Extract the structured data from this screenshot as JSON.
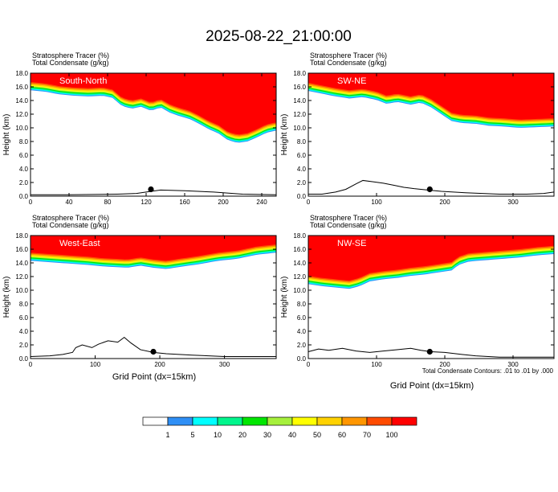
{
  "title": "2025-08-22_21:00:00",
  "chart_data": {
    "type": "heatmap",
    "shared": {
      "field_labels": [
        "Stratosphere Tracer   (%)",
        "Total Condensate   (g/kg)"
      ],
      "ylabel": "Height (km)",
      "xlabel": "Grid Point (dx=15km)",
      "ylim": [
        0,
        18
      ],
      "yticks": [
        "0.0",
        "2.0",
        "4.0",
        "6.0",
        "8.0",
        "10.0",
        "12.0",
        "14.0",
        "16.0",
        "18.0"
      ],
      "contour_note": "Total Condensate Contours: .01 to .01 by .000",
      "contour_label": ".01"
    },
    "panels": [
      {
        "name": "South-North",
        "xlim": [
          0,
          255
        ],
        "xticks": [
          0,
          40,
          80,
          120,
          160,
          200,
          240
        ],
        "marker": [
          125,
          1.0
        ],
        "tracer_base": [
          [
            0,
            15.5
          ],
          [
            15,
            15.3
          ],
          [
            30,
            14.9
          ],
          [
            45,
            14.7
          ],
          [
            60,
            14.6
          ],
          [
            75,
            14.7
          ],
          [
            85,
            14.4
          ],
          [
            95,
            13.2
          ],
          [
            105,
            12.8
          ],
          [
            115,
            13.1
          ],
          [
            125,
            12.5
          ],
          [
            135,
            13.0
          ],
          [
            145,
            12.2
          ],
          [
            155,
            11.7
          ],
          [
            165,
            11.3
          ],
          [
            175,
            10.6
          ],
          [
            185,
            9.8
          ],
          [
            195,
            9.2
          ],
          [
            205,
            8.2
          ],
          [
            215,
            7.8
          ],
          [
            225,
            8.0
          ],
          [
            235,
            8.6
          ],
          [
            245,
            9.3
          ],
          [
            255,
            9.6
          ]
        ],
        "terrain": [
          [
            0,
            0.2
          ],
          [
            40,
            0.2
          ],
          [
            90,
            0.3
          ],
          [
            110,
            0.4
          ],
          [
            120,
            0.6
          ],
          [
            135,
            0.9
          ],
          [
            160,
            0.8
          ],
          [
            190,
            0.6
          ],
          [
            220,
            0.3
          ],
          [
            255,
            0.2
          ]
        ]
      },
      {
        "name": "SW-NE",
        "xlim": [
          0,
          360
        ],
        "xticks": [
          0,
          100,
          200,
          300
        ],
        "marker": [
          178,
          1.0
        ],
        "tracer_base": [
          [
            0,
            15.4
          ],
          [
            20,
            15.0
          ],
          [
            40,
            14.6
          ],
          [
            60,
            14.3
          ],
          [
            80,
            14.5
          ],
          [
            100,
            14.1
          ],
          [
            115,
            13.5
          ],
          [
            130,
            13.8
          ],
          [
            150,
            13.4
          ],
          [
            165,
            13.7
          ],
          [
            180,
            13.0
          ],
          [
            195,
            12.0
          ],
          [
            210,
            11.0
          ],
          [
            225,
            10.7
          ],
          [
            245,
            10.6
          ],
          [
            265,
            10.3
          ],
          [
            285,
            10.2
          ],
          [
            310,
            10.0
          ],
          [
            335,
            10.1
          ],
          [
            360,
            10.2
          ]
        ],
        "terrain": [
          [
            0,
            0.3
          ],
          [
            20,
            0.3
          ],
          [
            40,
            0.6
          ],
          [
            55,
            1.0
          ],
          [
            70,
            1.8
          ],
          [
            80,
            2.3
          ],
          [
            95,
            2.1
          ],
          [
            110,
            1.9
          ],
          [
            125,
            1.6
          ],
          [
            140,
            1.3
          ],
          [
            155,
            1.1
          ],
          [
            175,
            0.9
          ],
          [
            195,
            0.7
          ],
          [
            230,
            0.5
          ],
          [
            280,
            0.3
          ],
          [
            320,
            0.3
          ],
          [
            345,
            0.4
          ],
          [
            360,
            0.6
          ]
        ]
      },
      {
        "name": "West-East",
        "xlim": [
          0,
          380
        ],
        "xticks": [
          0,
          100,
          200,
          300
        ],
        "marker": [
          190,
          1.0
        ],
        "tracer_base": [
          [
            0,
            14.3
          ],
          [
            30,
            14.1
          ],
          [
            60,
            13.9
          ],
          [
            90,
            13.7
          ],
          [
            110,
            13.5
          ],
          [
            130,
            13.4
          ],
          [
            150,
            13.3
          ],
          [
            170,
            13.6
          ],
          [
            190,
            13.3
          ],
          [
            210,
            13.1
          ],
          [
            230,
            13.4
          ],
          [
            260,
            13.8
          ],
          [
            290,
            14.3
          ],
          [
            320,
            14.6
          ],
          [
            350,
            15.2
          ],
          [
            380,
            15.5
          ]
        ],
        "terrain": [
          [
            0,
            0.3
          ],
          [
            30,
            0.4
          ],
          [
            50,
            0.6
          ],
          [
            65,
            0.9
          ],
          [
            70,
            1.6
          ],
          [
            80,
            2.0
          ],
          [
            95,
            1.6
          ],
          [
            105,
            2.1
          ],
          [
            120,
            2.6
          ],
          [
            135,
            2.4
          ],
          [
            145,
            3.1
          ],
          [
            155,
            2.3
          ],
          [
            170,
            1.3
          ],
          [
            190,
            0.9
          ],
          [
            210,
            0.7
          ],
          [
            250,
            0.5
          ],
          [
            300,
            0.3
          ],
          [
            380,
            0.3
          ]
        ]
      },
      {
        "name": "NW-SE",
        "xlim": [
          0,
          360
        ],
        "xticks": [
          0,
          100,
          200,
          300
        ],
        "marker": [
          178,
          1.0
        ],
        "tracer_base": [
          [
            0,
            10.9
          ],
          [
            20,
            10.6
          ],
          [
            40,
            10.4
          ],
          [
            60,
            10.2
          ],
          [
            75,
            10.6
          ],
          [
            90,
            11.3
          ],
          [
            110,
            11.6
          ],
          [
            130,
            11.8
          ],
          [
            150,
            12.1
          ],
          [
            170,
            12.3
          ],
          [
            190,
            12.6
          ],
          [
            210,
            12.9
          ],
          [
            220,
            13.7
          ],
          [
            235,
            14.2
          ],
          [
            260,
            14.4
          ],
          [
            285,
            14.6
          ],
          [
            310,
            14.8
          ],
          [
            335,
            15.1
          ],
          [
            360,
            15.3
          ]
        ],
        "terrain": [
          [
            0,
            1.0
          ],
          [
            15,
            1.4
          ],
          [
            30,
            1.2
          ],
          [
            50,
            1.5
          ],
          [
            70,
            1.1
          ],
          [
            90,
            0.9
          ],
          [
            110,
            1.1
          ],
          [
            130,
            1.3
          ],
          [
            150,
            1.5
          ],
          [
            165,
            1.2
          ],
          [
            180,
            1.0
          ],
          [
            200,
            0.9
          ],
          [
            225,
            0.6
          ],
          [
            245,
            0.4
          ],
          [
            280,
            0.2
          ],
          [
            360,
            0.2
          ]
        ]
      }
    ],
    "colorbar": {
      "labels": [
        "1",
        "5",
        "10",
        "20",
        "30",
        "40",
        "50",
        "60",
        "70",
        "100"
      ],
      "colors": [
        "#ffffff",
        "#2f8ff5",
        "#00ffff",
        "#00f58c",
        "#00e600",
        "#a6f03c",
        "#ffff00",
        "#ffd200",
        "#ff9600",
        "#ff4b00",
        "#ff0000"
      ]
    }
  }
}
